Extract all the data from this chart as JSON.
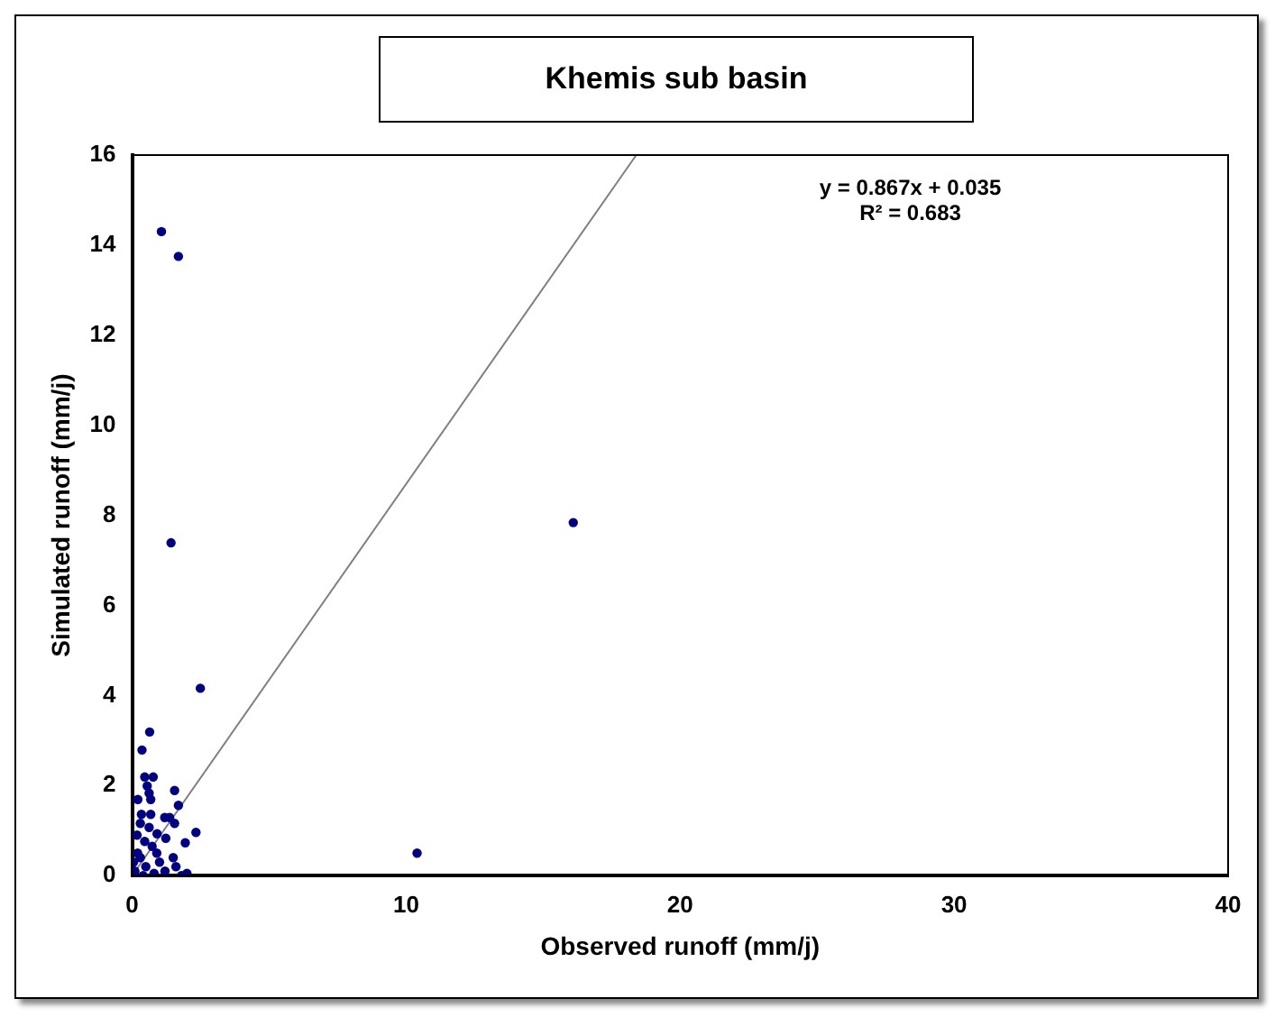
{
  "chart_data": {
    "type": "scatter",
    "title": "Khemis sub basin",
    "xlabel": "Observed runoff (mm/j)",
    "ylabel": "Simulated runoff (mm/j)",
    "xlim": [
      0,
      40
    ],
    "xticks": [
      0,
      10,
      20,
      30,
      40
    ],
    "ylim": [
      0,
      16
    ],
    "yticks": [
      0,
      2,
      4,
      6,
      8,
      10,
      12,
      14,
      16
    ],
    "grid": false,
    "legend": false,
    "marker": "circle",
    "annotations": [
      "y = 0.867x + 0.035",
      "R² = 0.683"
    ],
    "series": [
      {
        "color": "#000080",
        "x": [
          1.07,
          1.69,
          1.42,
          16.1,
          2.49,
          10.4,
          0.64,
          0.36,
          0.46,
          0.77,
          0.55,
          0.62,
          0.21,
          0.68,
          1.55,
          1.69,
          0.68,
          0.34,
          1.19,
          1.37,
          0.3,
          1.55,
          0.62,
          2.33,
          0.91,
          0.18,
          0.46,
          1.23,
          1.94,
          0.73,
          0.1,
          0.3,
          0.5,
          0.8,
          1.0,
          1.2,
          1.5,
          1.8,
          0.2,
          0.05,
          2.0,
          1.6,
          0.4,
          0.9
        ],
        "values": [
          14.3,
          13.75,
          7.39,
          7.84,
          4.16,
          0.5,
          3.19,
          2.79,
          2.19,
          2.19,
          1.99,
          1.83,
          1.69,
          1.69,
          1.89,
          1.56,
          1.36,
          1.36,
          1.29,
          1.29,
          1.16,
          1.16,
          1.07,
          0.96,
          0.93,
          0.9,
          0.76,
          0.83,
          0.73,
          0.65,
          0.1,
          0.4,
          0.2,
          0.05,
          0.3,
          0.1,
          0.4,
          0.0,
          0.5,
          0.3,
          0.05,
          0.2,
          0.0,
          0.5
        ]
      },
      {
        "type": "line",
        "marker": "none",
        "color": "#808080",
        "x": [
          0,
          18.4
        ],
        "values": [
          0,
          16
        ]
      }
    ]
  }
}
